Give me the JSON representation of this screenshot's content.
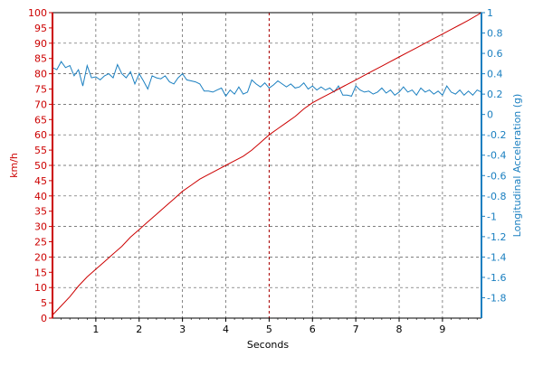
{
  "chart_data": {
    "type": "line",
    "xlabel": "Seconds",
    "ylabel_left": "km/h",
    "ylabel_right": "Longitudinal Acceleration (g)",
    "xlim": [
      0,
      9.9
    ],
    "ylim_left": [
      0,
      100
    ],
    "ylim_right": [
      -2,
      1
    ],
    "x_ticks": [
      "1",
      "2",
      "3",
      "4",
      "5",
      "6",
      "7",
      "8",
      "9"
    ],
    "y_ticks_left": [
      "0",
      "5",
      "10",
      "15",
      "20",
      "25",
      "30",
      "35",
      "40",
      "45",
      "50",
      "55",
      "60",
      "65",
      "70",
      "75",
      "80",
      "85",
      "90",
      "95",
      "100"
    ],
    "y_ticks_right": [
      "-1.8",
      "-1.6",
      "-1.4",
      "-1.2",
      "-1",
      "-0.8",
      "-0.6",
      "-0.4",
      "-0.2",
      "0",
      "0.2",
      "0.4",
      "0.6",
      "0.8",
      "1"
    ],
    "grid": true,
    "cursor_x": 5,
    "colors": {
      "speed": "#cc0000",
      "acceleration": "#1a7fc0",
      "grid": "#555555",
      "cursor": "#b00000"
    },
    "series": [
      {
        "axis": "left",
        "x": [
          0,
          0.2,
          0.4,
          0.6,
          0.8,
          1.0,
          1.2,
          1.4,
          1.6,
          1.8,
          2.0,
          2.2,
          2.4,
          2.6,
          2.8,
          3.0,
          3.2,
          3.4,
          3.6,
          3.8,
          4.0,
          4.2,
          4.4,
          4.6,
          4.8,
          5.0,
          5.2,
          5.4,
          5.6,
          5.8,
          6.0,
          6.2,
          6.4,
          6.6,
          6.8,
          7.0,
          7.2,
          7.4,
          7.6,
          7.8,
          8.0,
          8.2,
          8.4,
          8.6,
          8.8,
          9.0,
          9.2,
          9.4,
          9.6,
          9.9
        ],
        "values": [
          1,
          4,
          7,
          10.5,
          13.5,
          16,
          18.5,
          21,
          23.5,
          26.5,
          29,
          31.5,
          34,
          36.5,
          39,
          41.5,
          43.5,
          45.5,
          47,
          48.5,
          50,
          51.5,
          53,
          55,
          57.5,
          60,
          62,
          64,
          66,
          68.5,
          70.5,
          72,
          73.5,
          75,
          76.5,
          78,
          79.5,
          81,
          82.5,
          84,
          85.5,
          87,
          88.5,
          90,
          91.5,
          93,
          94.5,
          96,
          97.5,
          100
        ]
      },
      {
        "axis": "right",
        "x": [
          0,
          0.1,
          0.2,
          0.3,
          0.4,
          0.5,
          0.6,
          0.7,
          0.8,
          0.9,
          1.0,
          1.1,
          1.2,
          1.3,
          1.4,
          1.5,
          1.6,
          1.7,
          1.8,
          1.9,
          2.0,
          2.1,
          2.2,
          2.3,
          2.4,
          2.5,
          2.6,
          2.7,
          2.8,
          2.9,
          3.0,
          3.1,
          3.2,
          3.3,
          3.4,
          3.5,
          3.6,
          3.7,
          3.8,
          3.9,
          4.0,
          4.1,
          4.2,
          4.3,
          4.4,
          4.5,
          4.6,
          4.7,
          4.8,
          4.9,
          5.0,
          5.1,
          5.2,
          5.3,
          5.4,
          5.5,
          5.6,
          5.7,
          5.8,
          5.9,
          6.0,
          6.1,
          6.2,
          6.3,
          6.4,
          6.5,
          6.6,
          6.7,
          6.8,
          6.9,
          7.0,
          7.1,
          7.2,
          7.3,
          7.4,
          7.5,
          7.6,
          7.7,
          7.8,
          7.9,
          8.0,
          8.1,
          8.2,
          8.3,
          8.4,
          8.5,
          8.6,
          8.7,
          8.8,
          8.9,
          9.0,
          9.1,
          9.2,
          9.3,
          9.4,
          9.5,
          9.6,
          9.7,
          9.8,
          9.9
        ],
        "values": [
          0.46,
          0.44,
          0.52,
          0.46,
          0.48,
          0.38,
          0.44,
          0.28,
          0.48,
          0.36,
          0.37,
          0.34,
          0.38,
          0.4,
          0.36,
          0.49,
          0.4,
          0.36,
          0.42,
          0.3,
          0.4,
          0.33,
          0.25,
          0.38,
          0.36,
          0.35,
          0.38,
          0.32,
          0.3,
          0.36,
          0.4,
          0.34,
          0.33,
          0.32,
          0.3,
          0.23,
          0.23,
          0.22,
          0.24,
          0.26,
          0.18,
          0.24,
          0.2,
          0.27,
          0.2,
          0.22,
          0.34,
          0.3,
          0.27,
          0.31,
          0.26,
          0.29,
          0.33,
          0.3,
          0.27,
          0.3,
          0.26,
          0.27,
          0.31,
          0.25,
          0.28,
          0.24,
          0.27,
          0.24,
          0.26,
          0.22,
          0.28,
          0.19,
          0.19,
          0.18,
          0.28,
          0.24,
          0.22,
          0.23,
          0.2,
          0.22,
          0.26,
          0.21,
          0.24,
          0.19,
          0.22,
          0.27,
          0.22,
          0.24,
          0.19,
          0.26,
          0.22,
          0.24,
          0.2,
          0.23,
          0.19,
          0.28,
          0.22,
          0.2,
          0.24,
          0.19,
          0.23,
          0.19,
          0.24,
          0.22
        ]
      }
    ]
  }
}
